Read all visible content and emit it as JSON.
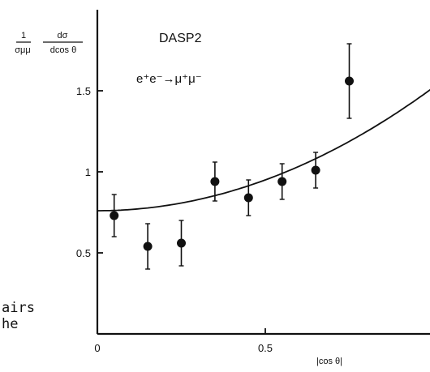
{
  "chart_data": {
    "type": "scatter",
    "title": "DASP2",
    "annotation": "e⁺e⁻→μ⁺μ⁻",
    "ylabel": {
      "factor_numerator": "1",
      "factor_denominator": "σμμ",
      "diff_numerator": "dσ",
      "diff_denominator": "dcos θ"
    },
    "xlabel": "|cos θ|",
    "xlim": [
      0,
      1.0
    ],
    "ylim": [
      0,
      2.0
    ],
    "xticks": [
      {
        "value": 0,
        "label": "0"
      },
      {
        "value": 0.5,
        "label": "0.5"
      }
    ],
    "yticks": [
      {
        "value": 0.5,
        "label": "0.5"
      },
      {
        "value": 1.0,
        "label": "1"
      },
      {
        "value": 1.5,
        "label": "1.5"
      }
    ],
    "series": [
      {
        "x": [
          0.05,
          0.15,
          0.25,
          0.35,
          0.45,
          0.55,
          0.65,
          0.75
        ],
        "y": [
          0.73,
          0.54,
          0.56,
          0.94,
          0.84,
          0.94,
          1.01,
          1.56
        ],
        "yerr": [
          0.13,
          0.14,
          0.14,
          0.12,
          0.11,
          0.11,
          0.11,
          0.23
        ]
      }
    ],
    "fit_curve": {
      "form": "a(1 + x^2)",
      "a": 0.76
    },
    "grid": false,
    "legend": "none"
  },
  "side_text": [
    "airs",
    "he"
  ]
}
